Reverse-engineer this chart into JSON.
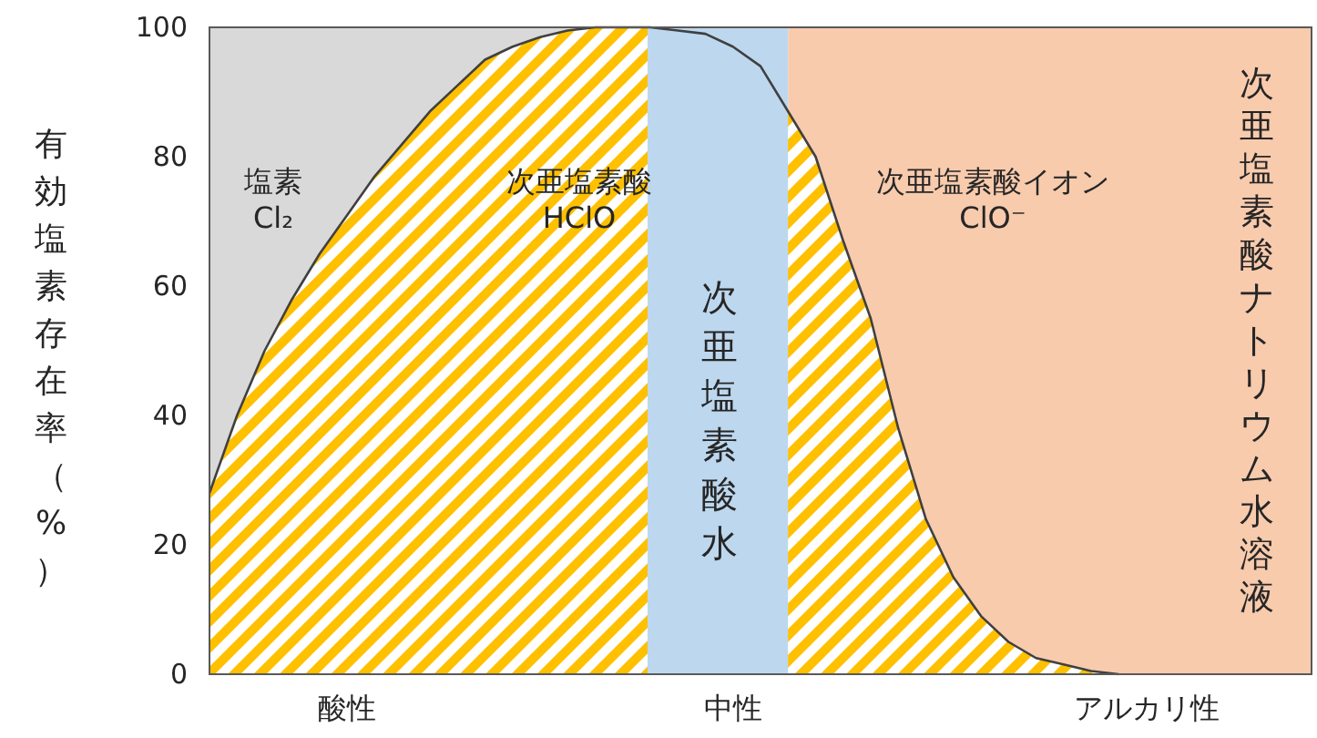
{
  "chart_data": {
    "type": "area",
    "ylabel": "有効塩素存在率（%）",
    "categories": [
      null,
      null,
      null,
      null,
      null,
      "酸性",
      null,
      null,
      null,
      null,
      null,
      null,
      null,
      null,
      null,
      null,
      null,
      null,
      null,
      "中性",
      null,
      null,
      null,
      null,
      null,
      null,
      null,
      null,
      null,
      null,
      null,
      null,
      null,
      null,
      "アルカリ性",
      null,
      null,
      null,
      null,
      null,
      null
    ],
    "ylim": [
      0,
      100
    ],
    "yticks": [
      0,
      20,
      40,
      60,
      80,
      100
    ],
    "series": [
      {
        "name": "次亜塩素酸\nHClO",
        "color": "#ffc000",
        "values": [
          28,
          40,
          50,
          58,
          65,
          71,
          77,
          82,
          87,
          91,
          95,
          97,
          98.5,
          99.5,
          100,
          100,
          100,
          99.5,
          99,
          97,
          94,
          87,
          80,
          67,
          55,
          38,
          24,
          15,
          9,
          5,
          2.5,
          1.5,
          0.5,
          0,
          null,
          null,
          null,
          null,
          null,
          null,
          null
        ]
      }
    ],
    "annotations": [
      "塩素\nCl₂",
      "次亜塩素酸イオン\nClO⁻",
      "次亜塩素酸水",
      "次亜塩素酸ナトリウム水溶液"
    ]
  }
}
